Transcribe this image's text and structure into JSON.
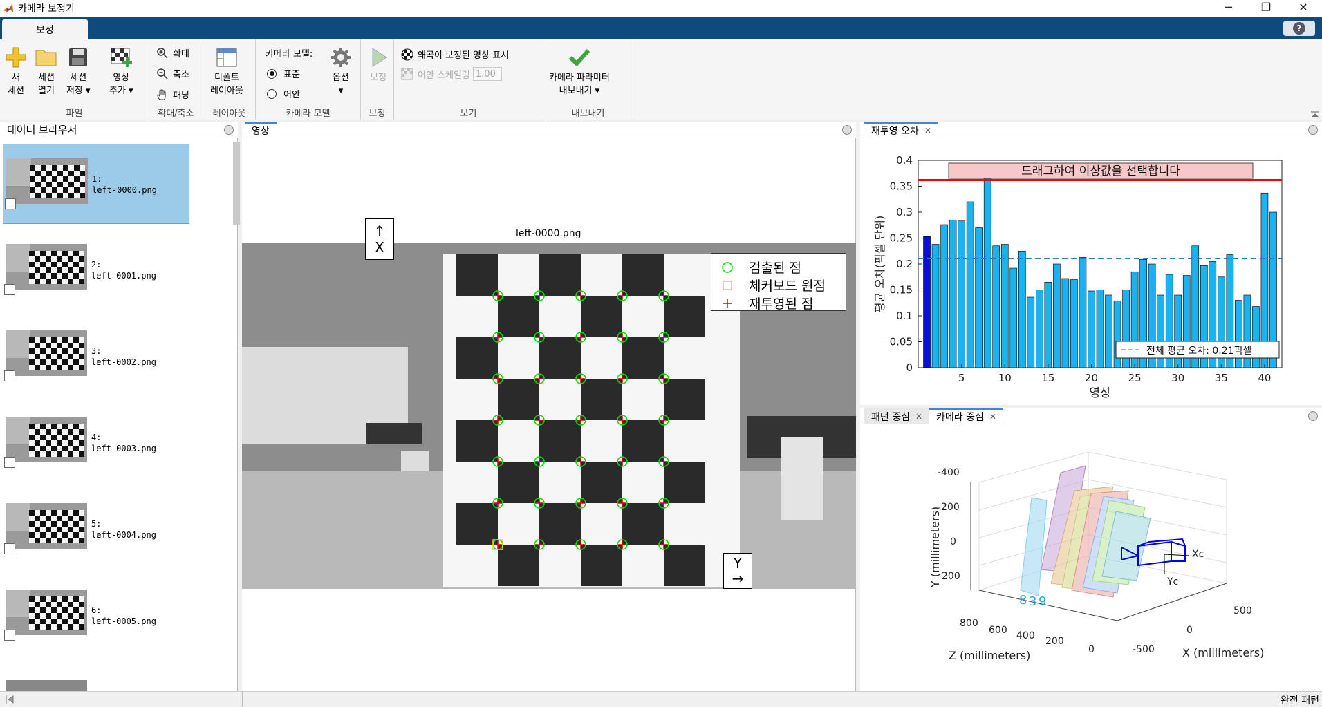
{
  "window": {
    "title": "카메라 보정기",
    "minimize": "─",
    "restore": "❐",
    "close": "✕"
  },
  "tabs": {
    "active": "보정",
    "help": "?"
  },
  "ribbon": {
    "file": {
      "label": "파일",
      "new_session": [
        "새",
        "세션"
      ],
      "open_session": [
        "세션",
        "열기"
      ],
      "save_session": [
        "세션",
        "저장 ▾"
      ],
      "add_images": [
        "영상",
        "추가 ▾"
      ]
    },
    "zoom": {
      "label": "확대/축소",
      "zoom_in": "확대",
      "zoom_out": "축소",
      "pan": "패닝"
    },
    "layout": {
      "label": "레이아웃",
      "default_layout": [
        "디폴트",
        "레이아웃"
      ]
    },
    "camera_model": {
      "label": "카메라 모델",
      "title": "카메라 모델:",
      "standard": "표준",
      "fisheye": "어안",
      "options": "옵션",
      "options_arrow": "▾"
    },
    "calibrate": {
      "label": "보정",
      "button": "보정"
    },
    "view": {
      "label": "보기",
      "show_undistorted": "왜곡이 보정된 영상 표시",
      "fisheye_scale": "어안 스케일링",
      "scale_value": "1.00"
    },
    "export": {
      "label": "내보내기",
      "button": [
        "카메라 파라미터",
        "내보내기 ▾"
      ]
    }
  },
  "data_browser": {
    "title": "데이터 브라우저",
    "items": [
      {
        "index": "1:",
        "file": "left-0000.png"
      },
      {
        "index": "2:",
        "file": "left-0001.png"
      },
      {
        "index": "3:",
        "file": "left-0002.png"
      },
      {
        "index": "4:",
        "file": "left-0003.png"
      },
      {
        "index": "5:",
        "file": "left-0004.png"
      },
      {
        "index": "6:",
        "file": "left-0005.png"
      }
    ]
  },
  "image_panel": {
    "tab": "영상",
    "image_title": "left-0000.png",
    "x_axis_label": "X",
    "y_axis_label": "Y",
    "legend": {
      "detected": "검출된 점",
      "origin": "체커보드 원점",
      "reprojected": "재투영된 점"
    }
  },
  "reprojection_panel": {
    "tab": "재투영 오차",
    "drag_hint": "드래그하여 이상값을 선택합니다",
    "mean_label": "전체 평균 오차: 0.21픽셀"
  },
  "extrinsics_panel": {
    "tabs": [
      "패턴 중심",
      "카메라 중심"
    ],
    "xlabel": "X (millimeters)",
    "ylabel": "Y (millimeters)",
    "zlabel": "Z (millimeters)",
    "y_ticks": [
      "-400",
      "-200",
      "0",
      "200"
    ],
    "z_ticks": [
      "800",
      "600",
      "400",
      "200",
      "0"
    ],
    "x_ticks": [
      "500",
      "0",
      "-500"
    ],
    "xc": "Xc",
    "yc": "Yc",
    "numbers": [
      "8",
      "3",
      "9"
    ]
  },
  "chart_data": {
    "type": "bar",
    "title": "",
    "xlabel": "영상",
    "ylabel": "평균 오차(픽셀 단위)",
    "xlim": [
      0,
      42
    ],
    "ylim": [
      0,
      0.4
    ],
    "x_ticks": [
      5,
      10,
      15,
      20,
      25,
      30,
      35,
      40
    ],
    "y_ticks": [
      0,
      0.05,
      0.1,
      0.15,
      0.2,
      0.25,
      0.3,
      0.35,
      0.4
    ],
    "categories": [
      1,
      2,
      3,
      4,
      5,
      6,
      7,
      8,
      9,
      10,
      11,
      12,
      13,
      14,
      15,
      16,
      17,
      18,
      19,
      20,
      21,
      22,
      23,
      24,
      25,
      26,
      27,
      28,
      29,
      30,
      31,
      32,
      33,
      34,
      35,
      36,
      37,
      38,
      39,
      40,
      41
    ],
    "values": [
      0.253,
      0.238,
      0.276,
      0.285,
      0.283,
      0.32,
      0.27,
      0.365,
      0.235,
      0.238,
      0.192,
      0.225,
      0.136,
      0.15,
      0.165,
      0.2,
      0.172,
      0.17,
      0.213,
      0.148,
      0.15,
      0.14,
      0.129,
      0.15,
      0.185,
      0.209,
      0.2,
      0.14,
      0.18,
      0.14,
      0.178,
      0.235,
      0.197,
      0.205,
      0.175,
      0.218,
      0.13,
      0.14,
      0.118,
      0.337,
      0.3
    ],
    "selected_index": 0,
    "mean": 0.21,
    "threshold": 0.362,
    "colors": {
      "bar": "#1ab2f0",
      "selected": "#0a10d6",
      "threshold": "#ff0000",
      "mean": "#2c79c9"
    }
  },
  "status": {
    "right_text": "완전 패턴"
  }
}
